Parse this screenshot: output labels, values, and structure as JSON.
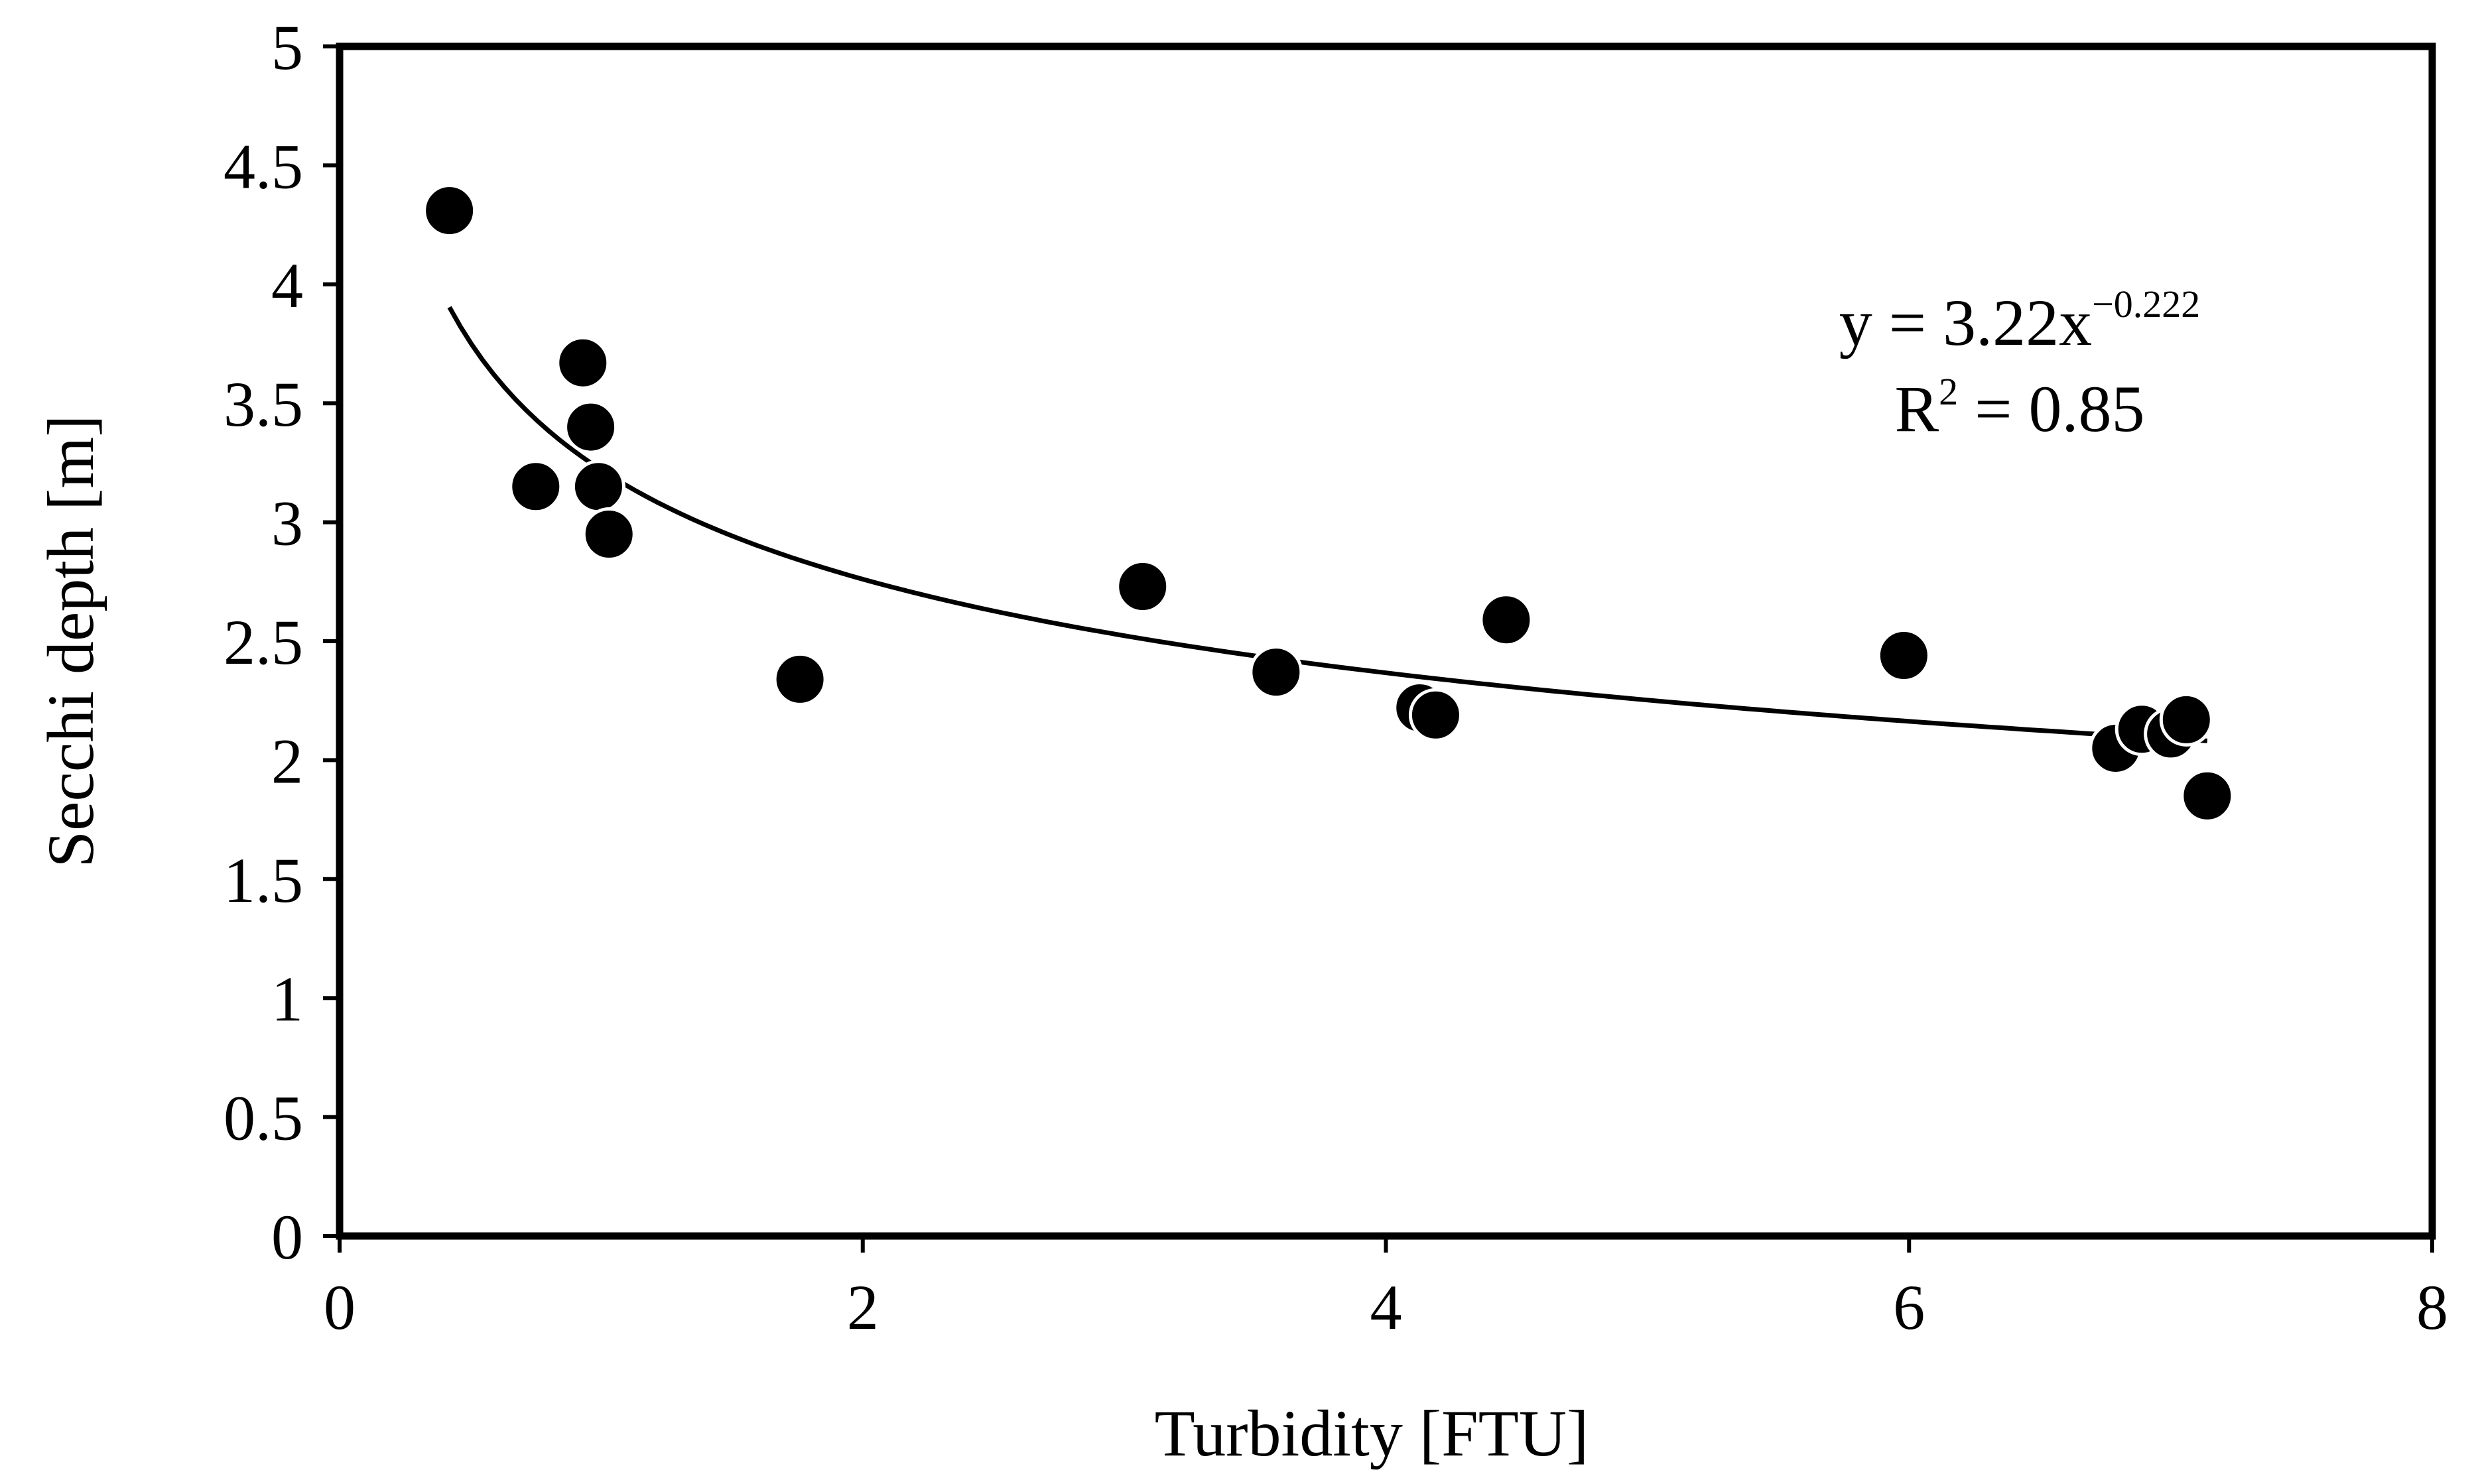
{
  "chart_data": {
    "type": "scatter",
    "xlabel": "Turbidity [FTU]",
    "ylabel": "Secchi depth [m]",
    "xlim": [
      0,
      8
    ],
    "ylim": [
      0,
      5
    ],
    "x_ticks": [
      "0",
      "2",
      "4",
      "6",
      "8"
    ],
    "y_ticks": [
      "0",
      "0.5",
      "1",
      "1.5",
      "2",
      "2.5",
      "3",
      "3.5",
      "4",
      "4.5",
      "5"
    ],
    "grid": false,
    "legend": "none",
    "colors": {
      "points": "#000000",
      "line": "#000000",
      "frame": "#000000"
    },
    "series": [
      {
        "points": [
          {
            "x": 0.42,
            "y": 4.31
          },
          {
            "x": 0.75,
            "y": 3.15
          },
          {
            "x": 0.93,
            "y": 3.67
          },
          {
            "x": 0.96,
            "y": 3.4
          },
          {
            "x": 0.99,
            "y": 3.15
          },
          {
            "x": 1.03,
            "y": 2.95
          },
          {
            "x": 1.76,
            "y": 2.34
          },
          {
            "x": 3.07,
            "y": 2.73
          },
          {
            "x": 3.58,
            "y": 2.37
          },
          {
            "x": 4.13,
            "y": 2.22
          },
          {
            "x": 4.19,
            "y": 2.19
          },
          {
            "x": 4.46,
            "y": 2.59
          },
          {
            "x": 5.98,
            "y": 2.44
          },
          {
            "x": 6.79,
            "y": 2.05
          },
          {
            "x": 6.89,
            "y": 2.13
          },
          {
            "x": 7.0,
            "y": 2.11
          },
          {
            "x": 7.06,
            "y": 2.17
          },
          {
            "x": 7.14,
            "y": 1.85
          }
        ]
      }
    ],
    "trendline": {
      "type": "power",
      "coefficient": 3.22,
      "exponent": -0.222,
      "x_range": [
        0.42,
        7.14
      ],
      "equation_base": "y = 3.22x",
      "equation_exponent": "−0.222",
      "r2_prefix": "R",
      "r2_power": "2",
      "r2_value": " = 0.85"
    }
  }
}
